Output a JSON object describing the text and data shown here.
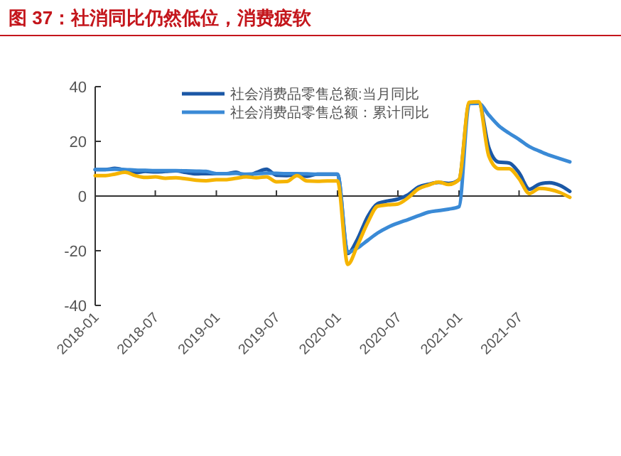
{
  "chart_data": {
    "type": "line",
    "title": "图 37：社消同比仍然低位，消费疲软",
    "x": [
      "2018-01",
      "2018-02",
      "2018-03",
      "2018-04",
      "2018-05",
      "2018-06",
      "2018-07",
      "2018-08",
      "2018-09",
      "2018-10",
      "2018-11",
      "2018-12",
      "2019-01",
      "2019-02",
      "2019-03",
      "2019-04",
      "2019-05",
      "2019-06",
      "2019-07",
      "2019-08",
      "2019-09",
      "2019-10",
      "2019-11",
      "2019-12",
      "2020-01",
      "2020-02",
      "2020-03",
      "2020-04",
      "2020-05",
      "2020-06",
      "2020-07",
      "2020-08",
      "2020-09",
      "2020-10",
      "2020-11",
      "2020-12",
      "2021-01",
      "2021-02",
      "2021-03",
      "2021-04",
      "2021-05",
      "2021-06",
      "2021-07",
      "2021-08",
      "2021-09",
      "2021-10",
      "2021-11",
      "2021-12"
    ],
    "series": [
      {
        "name": "社会消费品零售总额:当月同比",
        "color": "#1b58a6",
        "values": [
          9.7,
          9.7,
          10.1,
          9.4,
          8.5,
          9.0,
          8.8,
          9.0,
          9.2,
          8.6,
          8.1,
          8.2,
          8.2,
          8.2,
          8.7,
          7.2,
          8.6,
          9.8,
          7.6,
          7.5,
          7.8,
          7.2,
          8.0,
          8.0,
          8.0,
          -21,
          -15.8,
          -7.5,
          -2.8,
          -1.8,
          -1.1,
          0.5,
          3.3,
          4.3,
          5.0,
          4.6,
          6,
          33.8,
          34.2,
          17.7,
          12.4,
          12.1,
          8.5,
          2.5,
          4.4,
          4.9,
          3.9,
          1.7
        ]
      },
      {
        "name": "社会消费品零售总额：累计同比",
        "color": "#3a8ad6",
        "values": [
          9.7,
          9.7,
          9.8,
          9.7,
          9.5,
          9.4,
          9.3,
          9.3,
          9.3,
          9.2,
          9.1,
          9.0,
          8.2,
          8.2,
          8.3,
          8.0,
          8.1,
          8.4,
          8.3,
          8.2,
          8.2,
          8.1,
          8.0,
          8.0,
          8.0,
          -20.5,
          -19,
          -16.2,
          -13.5,
          -11.4,
          -9.9,
          -8.6,
          -7.2,
          -5.9,
          -5.3,
          -4.8,
          -3.9,
          33.8,
          33.9,
          29.6,
          25.7,
          23.0,
          20.7,
          18.1,
          16.4,
          14.9,
          13.7,
          12.5
        ]
      },
      {
        "color": "#f5b400",
        "values": [
          7.5,
          7.5,
          8.0,
          8.7,
          7.5,
          6.8,
          7.0,
          6.5,
          6.7,
          6.3,
          5.8,
          5.6,
          6.0,
          6.0,
          6.5,
          7.0,
          6.7,
          7.0,
          5.2,
          5.3,
          7.5,
          5.5,
          5.4,
          5.5,
          5.5,
          -25,
          -18.1,
          -9.7,
          -3.7,
          -3.2,
          -2.9,
          -0.6,
          2.6,
          4.0,
          5.1,
          4.2,
          6,
          34.3,
          34.5,
          14.6,
          10.0,
          10.0,
          6.3,
          0.9,
          2.8,
          2.4,
          1.3,
          -0.5
        ]
      }
    ],
    "xlim": [
      "2018-01",
      "2021-12"
    ],
    "xticks": [
      {
        "value": "2018-01",
        "label": "2018-01"
      },
      {
        "value": "2018-07",
        "label": "2018-07"
      },
      {
        "value": "2019-01",
        "label": "2019-01"
      },
      {
        "value": "2019-07",
        "label": "2019-07"
      },
      {
        "value": "2020-01",
        "label": "2020-01"
      },
      {
        "value": "2020-07",
        "label": "2020-07"
      },
      {
        "value": "2021-01",
        "label": "2021-01"
      },
      {
        "value": "2021-07",
        "label": "2021-07"
      }
    ],
    "ylim": [
      -40,
      40
    ],
    "yticks": [
      -40,
      -20,
      0,
      20,
      40
    ],
    "legend": "top"
  }
}
